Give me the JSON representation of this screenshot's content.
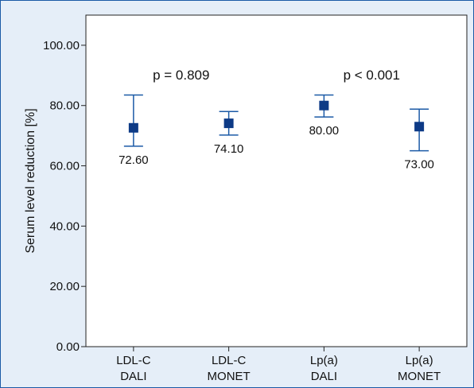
{
  "chart_data": {
    "type": "scatter",
    "subtype": "error-bar",
    "ylabel": "Serum level reduction [%]",
    "ylim": [
      0,
      110
    ],
    "yticks": [
      "0.00",
      "20.00",
      "40.00",
      "60.00",
      "80.00",
      "100.00"
    ],
    "ytick_values": [
      0,
      20,
      40,
      60,
      80,
      100
    ],
    "grid": false,
    "categories": [
      [
        "LDL-C",
        "DALI"
      ],
      [
        "LDL-C",
        "MONET"
      ],
      [
        "Lp(a)",
        "DALI"
      ],
      [
        "Lp(a)",
        "MONET"
      ]
    ],
    "points": [
      {
        "value": 72.6,
        "label": "72.60",
        "lower": 66.5,
        "upper": 83.5
      },
      {
        "value": 74.1,
        "label": "74.10",
        "lower": 70.2,
        "upper": 78.0
      },
      {
        "value": 80.0,
        "label": "80.00",
        "lower": 76.2,
        "upper": 83.5
      },
      {
        "value": 73.0,
        "label": "73.00",
        "lower": 65.0,
        "upper": 78.8
      }
    ],
    "comparisons": [
      {
        "text": "p = 0.809",
        "between": [
          0,
          1
        ],
        "y": 90
      },
      {
        "text": "p < 0.001",
        "between": [
          2,
          3
        ],
        "y": 90
      }
    ],
    "colors": {
      "marker": "#0d3a86",
      "errorbar": "#1b5aa6",
      "background": "#e5eef8",
      "plot_background": "#ffffff"
    }
  }
}
